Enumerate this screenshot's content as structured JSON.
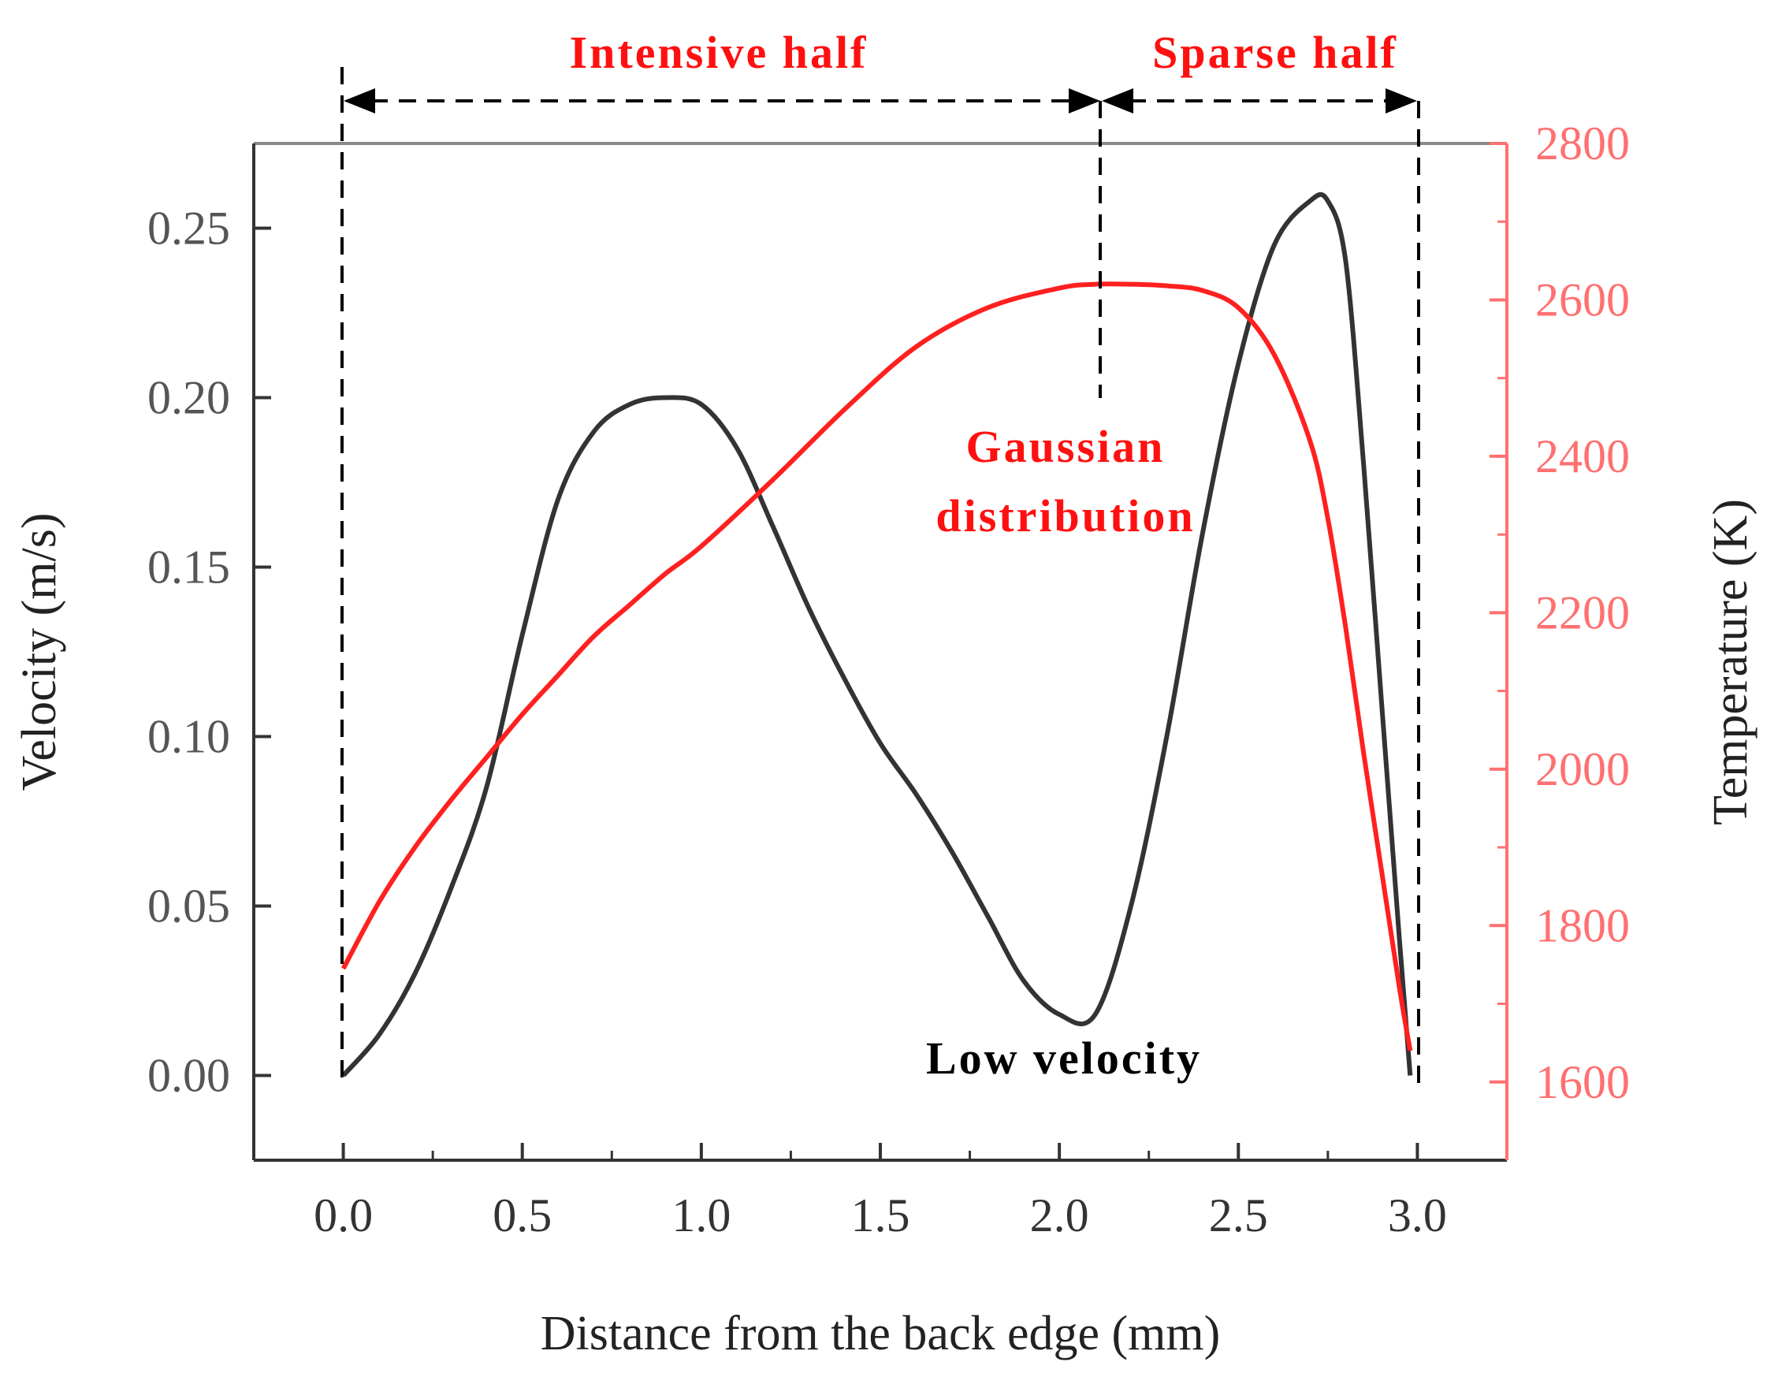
{
  "chart_data": {
    "type": "line",
    "xlabel": "Distance from the back edge (mm)",
    "ylabel_left": "Velocity (m/s)",
    "ylabel_right": "Temperature (K)",
    "xlim": [
      -0.25,
      3.25
    ],
    "ylim_left": [
      -0.025,
      0.275
    ],
    "ylim_right": [
      1500,
      2800
    ],
    "x_ticks": [
      0.0,
      0.5,
      1.0,
      1.5,
      2.0,
      2.5,
      3.0
    ],
    "x_tick_labels": [
      "0.0",
      "0.5",
      "1.0",
      "1.5",
      "2.0",
      "2.5",
      "3.0"
    ],
    "y_left_ticks": [
      0.0,
      0.05,
      0.1,
      0.15,
      0.2,
      0.25
    ],
    "y_left_tick_labels": [
      "0.00",
      "0.05",
      "0.10",
      "0.15",
      "0.20",
      "0.25"
    ],
    "y_right_ticks": [
      1600,
      1800,
      2000,
      2200,
      2400,
      2600,
      2800
    ],
    "y_right_tick_labels": [
      "1600",
      "1800",
      "2000",
      "2200",
      "2400",
      "2600",
      "2800"
    ],
    "series": [
      {
        "axis": "left",
        "color": "#333333",
        "x": [
          0.0,
          0.1,
          0.2,
          0.3,
          0.4,
          0.5,
          0.6,
          0.7,
          0.8,
          0.9,
          1.0,
          1.1,
          1.2,
          1.3,
          1.4,
          1.5,
          1.6,
          1.7,
          1.8,
          1.9,
          2.0,
          2.1,
          2.2,
          2.3,
          2.4,
          2.5,
          2.6,
          2.7,
          2.75,
          2.8,
          2.85,
          2.9,
          2.95,
          2.98
        ],
        "y": [
          0.0,
          0.012,
          0.03,
          0.055,
          0.085,
          0.13,
          0.17,
          0.19,
          0.198,
          0.2,
          0.198,
          0.185,
          0.162,
          0.138,
          0.117,
          0.098,
          0.083,
          0.066,
          0.047,
          0.028,
          0.018,
          0.018,
          0.05,
          0.1,
          0.16,
          0.21,
          0.245,
          0.258,
          0.258,
          0.24,
          0.18,
          0.11,
          0.04,
          0.0
        ]
      },
      {
        "axis": "right",
        "color": "#ff2020",
        "x": [
          0.0,
          0.1,
          0.2,
          0.3,
          0.4,
          0.5,
          0.6,
          0.7,
          0.8,
          0.9,
          1.0,
          1.2,
          1.4,
          1.6,
          1.8,
          2.0,
          2.1,
          2.2,
          2.3,
          2.4,
          2.5,
          2.6,
          2.7,
          2.75,
          2.8,
          2.85,
          2.9,
          2.95,
          2.98
        ],
        "y": [
          1745,
          1830,
          1900,
          1960,
          2015,
          2070,
          2120,
          2170,
          2210,
          2250,
          2285,
          2370,
          2460,
          2540,
          2590,
          2615,
          2620,
          2620,
          2618,
          2612,
          2590,
          2530,
          2420,
          2320,
          2180,
          2020,
          1870,
          1720,
          1640
        ]
      }
    ],
    "annotations": {
      "intensive_half": "Intensive half",
      "sparse_half": "Sparse half",
      "gaussian_line1": "Gaussian",
      "gaussian_line2": "distribution",
      "low_velocity": "Low velocity"
    },
    "colors": {
      "velocity": "#333333",
      "temperature": "#ff2020",
      "right_axis": "#ff7070",
      "annotation_red": "#ff1010",
      "annotation_black": "#000000"
    }
  }
}
